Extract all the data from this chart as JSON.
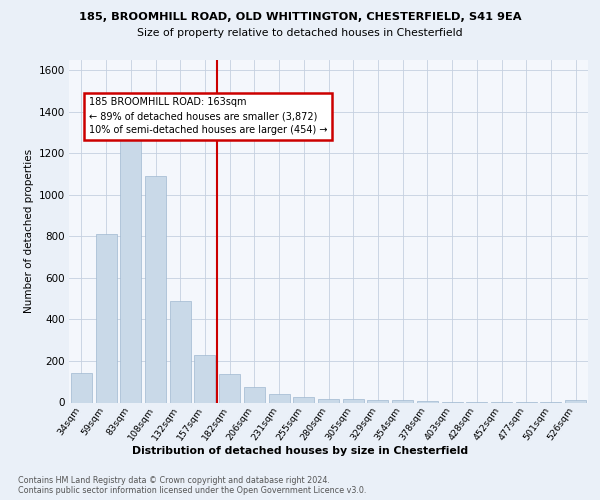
{
  "title_line1": "185, BROOMHILL ROAD, OLD WHITTINGTON, CHESTERFIELD, S41 9EA",
  "title_line2": "Size of property relative to detached houses in Chesterfield",
  "xlabel": "Distribution of detached houses by size in Chesterfield",
  "ylabel": "Number of detached properties",
  "bar_labels": [
    "34sqm",
    "59sqm",
    "83sqm",
    "108sqm",
    "132sqm",
    "157sqm",
    "182sqm",
    "206sqm",
    "231sqm",
    "255sqm",
    "280sqm",
    "305sqm",
    "329sqm",
    "354sqm",
    "378sqm",
    "403sqm",
    "428sqm",
    "452sqm",
    "477sqm",
    "501sqm",
    "526sqm"
  ],
  "bar_values": [
    140,
    810,
    1295,
    1090,
    490,
    230,
    135,
    75,
    42,
    25,
    18,
    15,
    13,
    10,
    5,
    3,
    2,
    1,
    1,
    1,
    14
  ],
  "bar_color": "#c9d9e8",
  "bar_edge_color": "#a0b8d0",
  "vline_color": "#cc0000",
  "annotation_text": "185 BROOMHILL ROAD: 163sqm\n← 89% of detached houses are smaller (3,872)\n10% of semi-detached houses are larger (454) →",
  "annotation_box_color": "#ffffff",
  "annotation_box_edge": "#cc0000",
  "ylim": [
    0,
    1650
  ],
  "yticks": [
    0,
    200,
    400,
    600,
    800,
    1000,
    1200,
    1400,
    1600
  ],
  "footer_line1": "Contains HM Land Registry data © Crown copyright and database right 2024.",
  "footer_line2": "Contains public sector information licensed under the Open Government Licence v3.0.",
  "bg_color": "#eaf0f8",
  "plot_bg_color": "#f4f7fc",
  "grid_color": "#c5d0e0"
}
